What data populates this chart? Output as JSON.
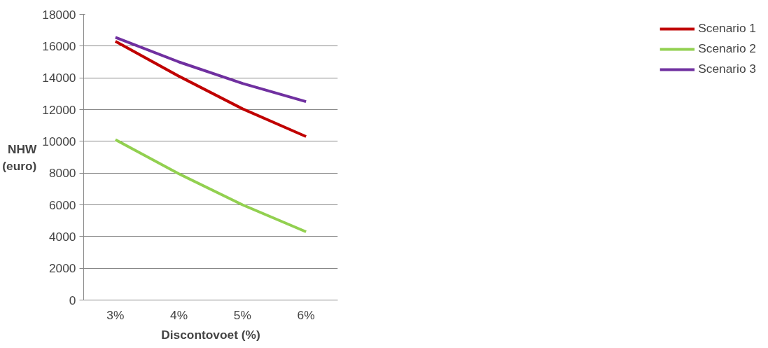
{
  "chart_data": {
    "type": "line",
    "xlabel": "Discontovoet (%)",
    "ylabel": "NHW (euro)",
    "categories": [
      "3%",
      "4%",
      "5%",
      "6%"
    ],
    "series": [
      {
        "name": "Scenario 1",
        "color": "#c00000",
        "values": [
          16300,
          14100,
          12050,
          10300
        ]
      },
      {
        "name": "Scenario 2",
        "color": "#92d050",
        "values": [
          10100,
          7950,
          6000,
          4300
        ]
      },
      {
        "name": "Scenario 3",
        "color": "#7030a0",
        "values": [
          16550,
          15000,
          13650,
          12500
        ]
      }
    ],
    "ylim": [
      0,
      18000
    ],
    "yticks": [
      0,
      2000,
      4000,
      6000,
      8000,
      10000,
      12000,
      14000,
      16000,
      18000
    ],
    "grid": "y",
    "legend": "right",
    "marker": "none",
    "line_style": "solid"
  }
}
